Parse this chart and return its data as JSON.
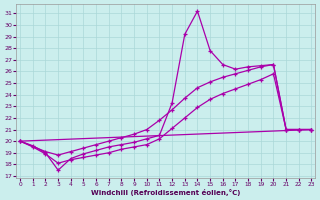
{
  "xlabel": "Windchill (Refroidissement éolien,°C)",
  "bg_color": "#cbeeed",
  "line_color": "#aa00aa",
  "grid_color": "#aad8d8",
  "x_ticks": [
    0,
    1,
    2,
    3,
    4,
    5,
    6,
    7,
    8,
    9,
    10,
    11,
    12,
    13,
    14,
    15,
    16,
    17,
    18,
    19,
    20,
    21,
    22,
    23
  ],
  "y_ticks": [
    17,
    18,
    19,
    20,
    21,
    22,
    23,
    24,
    25,
    26,
    27,
    28,
    29,
    30,
    31
  ],
  "ylim": [
    16.8,
    31.8
  ],
  "xlim": [
    -0.3,
    23.3
  ],
  "line1_x": [
    0,
    1,
    2,
    3,
    4,
    5,
    6,
    7,
    8,
    9,
    10,
    11,
    12,
    13,
    14,
    15,
    16,
    17,
    18,
    19,
    20,
    21,
    22,
    23
  ],
  "line1_y": [
    20.0,
    19.6,
    19.0,
    17.5,
    18.5,
    18.9,
    19.2,
    19.5,
    19.7,
    19.9,
    20.2,
    20.5,
    23.3,
    29.2,
    31.2,
    27.8,
    26.6,
    26.2,
    26.4,
    26.5,
    26.6,
    21.0,
    21.0,
    21.0
  ],
  "line2_x": [
    0,
    2,
    3,
    4,
    5,
    6,
    7,
    8,
    9,
    10,
    11,
    12,
    13,
    14,
    15,
    16,
    17,
    18,
    19,
    20,
    21,
    22,
    23
  ],
  "line2_y": [
    20.0,
    19.1,
    18.8,
    19.1,
    19.4,
    19.7,
    20.0,
    20.3,
    20.6,
    21.0,
    21.8,
    22.7,
    23.7,
    24.6,
    25.1,
    25.5,
    25.8,
    26.1,
    26.4,
    26.6,
    21.0,
    21.0,
    21.0
  ],
  "line3_x": [
    0,
    1,
    2,
    3,
    4,
    5,
    6,
    7,
    8,
    9,
    10,
    11,
    12,
    13,
    14,
    15,
    16,
    17,
    18,
    19,
    20,
    21,
    22,
    23
  ],
  "line3_y": [
    20.0,
    19.5,
    18.9,
    18.1,
    18.4,
    18.6,
    18.8,
    19.0,
    19.3,
    19.5,
    19.7,
    20.2,
    21.1,
    22.0,
    22.9,
    23.6,
    24.1,
    24.5,
    24.9,
    25.3,
    25.8,
    21.0,
    21.0,
    21.0
  ],
  "line4_x": [
    0,
    23
  ],
  "line4_y": [
    20.0,
    21.0
  ]
}
